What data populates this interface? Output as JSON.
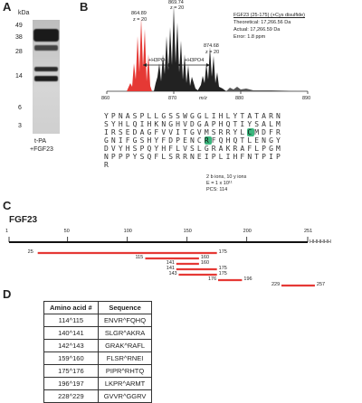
{
  "panels": {
    "a": "A",
    "b": "B",
    "c": "C",
    "d": "D"
  },
  "blot": {
    "unit_label": "kDa",
    "markers": [
      "49",
      "38",
      "28",
      "14",
      "6",
      "3"
    ],
    "lane_label_1": "t-PA",
    "lane_label_2": "+FGF23"
  },
  "spectrum": {
    "peaks": [
      {
        "mz": "864.89",
        "z": "z = 20"
      },
      {
        "mz": "869.74",
        "z": "z = 20"
      },
      {
        "mz": "874.68",
        "z": "z = 20"
      }
    ],
    "adduct_label_1": "+H3PO4",
    "adduct_label_2": "+H3PO4",
    "x_ticks": [
      "860",
      "870",
      "880",
      "890"
    ],
    "x_axis_label": "m/z",
    "info_title": "FGF23 (25-175) (+Cys disulfide)",
    "theoretical": "Theoretical: 17,266.56 Da",
    "actual": "Actual: 17,266.59 Da",
    "error": "Error: 1.8 ppm",
    "colors": {
      "red_peak": "#e53935",
      "black_peak": "#222222"
    }
  },
  "sequence": {
    "rows": [
      "YPNASPLLGSSWGGLIHLYTATARN",
      "SYHLQIHKNGHVDGAPHQTIYSALM",
      "IRSEDAGFVVITGVMSRRYLCMDFR",
      "GNIFGSHYFDPENCRFQHQTLENGY",
      "DVYHSPQYHFLVSLGRAKRAFLPGM",
      "NPPPYSQFLSRRNEIPLIHFNTPIP",
      "R"
    ],
    "highlight_color": "#3bb77e",
    "stats_1": "2 b ions, 10 y ions",
    "stats_2": "E = 1 x 10¹¹",
    "stats_3": "PCS: 114"
  },
  "fgf23_map": {
    "title": "FGF23",
    "ticks": [
      "1",
      "50",
      "100",
      "150",
      "200",
      "251"
    ],
    "his_tag": "HHHHHH",
    "fragments": [
      {
        "start": "25",
        "end": "175"
      },
      {
        "start": "115",
        "end": "160"
      },
      {
        "start": "141",
        "end": "160"
      },
      {
        "start": "141",
        "end": "175"
      },
      {
        "start": "143",
        "end": "175"
      },
      {
        "start": "176",
        "end": "196"
      },
      {
        "start": "229",
        "end": "257"
      }
    ],
    "fragment_color": "#e53935"
  },
  "cleavage_table": {
    "col1": "Amino acid #",
    "col2": "Sequence",
    "rows": [
      {
        "aa": "114^115",
        "seq": "ENVR^FQHQ"
      },
      {
        "aa": "140^141",
        "seq": "SLGR^AKRA"
      },
      {
        "aa": "142^143",
        "seq": "GRAK^RAFL"
      },
      {
        "aa": "159^160",
        "seq": "FLSR^RNEI"
      },
      {
        "aa": "175^176",
        "seq": "PIPR^RHTQ"
      },
      {
        "aa": "196^197",
        "seq": "LKPR^ARMT"
      },
      {
        "aa": "228^229",
        "seq": "GVVR^GGRV"
      }
    ]
  }
}
